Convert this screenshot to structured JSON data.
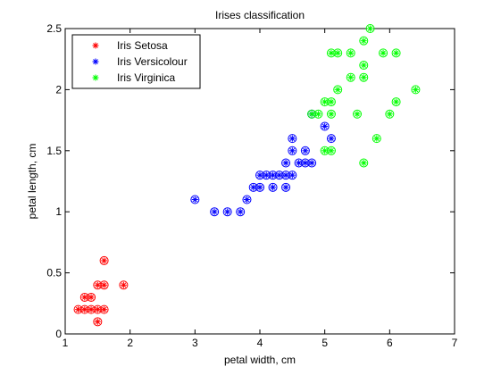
{
  "chart_data": {
    "type": "scatter",
    "title": "Irises classification",
    "xlabel": "petal width, cm",
    "ylabel": "petal length, cm",
    "xlim": [
      1,
      7
    ],
    "ylim": [
      0,
      2.5
    ],
    "xticks": [
      1,
      2,
      3,
      4,
      5,
      6,
      7
    ],
    "yticks": [
      0,
      0.5,
      1,
      1.5,
      2,
      2.5
    ],
    "grid": false,
    "legend_position": "top-left",
    "series": [
      {
        "name": "Iris Setosa",
        "color": "#ff0000",
        "marker": "asterisk-circle",
        "points": [
          [
            1.2,
            0.2
          ],
          [
            1.3,
            0.2
          ],
          [
            1.4,
            0.2
          ],
          [
            1.5,
            0.2
          ],
          [
            1.6,
            0.2
          ],
          [
            1.3,
            0.3
          ],
          [
            1.4,
            0.3
          ],
          [
            1.5,
            0.1
          ],
          [
            1.5,
            0.4
          ],
          [
            1.6,
            0.4
          ],
          [
            1.6,
            0.6
          ],
          [
            1.9,
            0.4
          ]
        ]
      },
      {
        "name": "Iris Versicolour",
        "color": "#0000ff",
        "marker": "asterisk-circle",
        "points": [
          [
            3.0,
            1.1
          ],
          [
            3.3,
            1.0
          ],
          [
            3.5,
            1.0
          ],
          [
            3.7,
            1.0
          ],
          [
            3.8,
            1.1
          ],
          [
            3.9,
            1.2
          ],
          [
            4.0,
            1.2
          ],
          [
            4.0,
            1.3
          ],
          [
            4.1,
            1.3
          ],
          [
            4.2,
            1.2
          ],
          [
            4.2,
            1.3
          ],
          [
            4.3,
            1.3
          ],
          [
            4.4,
            1.2
          ],
          [
            4.4,
            1.3
          ],
          [
            4.4,
            1.4
          ],
          [
            4.5,
            1.3
          ],
          [
            4.5,
            1.5
          ],
          [
            4.5,
            1.6
          ],
          [
            4.6,
            1.4
          ],
          [
            4.7,
            1.4
          ],
          [
            4.7,
            1.5
          ],
          [
            4.8,
            1.4
          ],
          [
            4.8,
            1.8
          ],
          [
            5.0,
            1.7
          ],
          [
            5.1,
            1.6
          ]
        ]
      },
      {
        "name": "Iris Virginica",
        "color": "#00ff00",
        "marker": "asterisk-circle",
        "points": [
          [
            4.8,
            1.8
          ],
          [
            4.9,
            1.8
          ],
          [
            5.0,
            1.9
          ],
          [
            5.0,
            1.5
          ],
          [
            5.1,
            1.8
          ],
          [
            5.1,
            1.9
          ],
          [
            5.1,
            1.5
          ],
          [
            5.1,
            2.3
          ],
          [
            5.2,
            2.3
          ],
          [
            5.2,
            2.0
          ],
          [
            5.4,
            2.1
          ],
          [
            5.4,
            2.3
          ],
          [
            5.5,
            1.8
          ],
          [
            5.6,
            2.1
          ],
          [
            5.6,
            2.2
          ],
          [
            5.6,
            2.4
          ],
          [
            5.6,
            1.4
          ],
          [
            5.7,
            2.5
          ],
          [
            5.8,
            1.6
          ],
          [
            5.9,
            2.3
          ],
          [
            6.0,
            1.8
          ],
          [
            6.1,
            1.9
          ],
          [
            6.1,
            2.3
          ],
          [
            6.4,
            2.0
          ]
        ]
      }
    ]
  }
}
